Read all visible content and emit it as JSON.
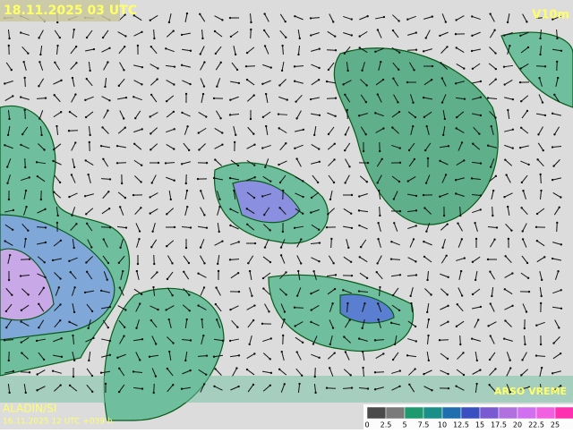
{
  "header": {
    "datetime": "18.11.2025 03 UTC",
    "parameter": "V10m"
  },
  "footer": {
    "model": "ALADIN/SI",
    "run": "16.11.2025 12 UTC +039 h",
    "logo": "ARSO VREME"
  },
  "legend": {
    "ticks": [
      0,
      2.5,
      5,
      7.5,
      10,
      12.5,
      15,
      17.5,
      20,
      22.5,
      25
    ],
    "colors": [
      "#4a4a4a",
      "#7a7a7a",
      "#1e9a6e",
      "#1a8f8a",
      "#1f6fb0",
      "#3a4fc0",
      "#7a5ad0",
      "#b070e0",
      "#d070f0",
      "#f060e0",
      "#ff30b0"
    ]
  }
}
